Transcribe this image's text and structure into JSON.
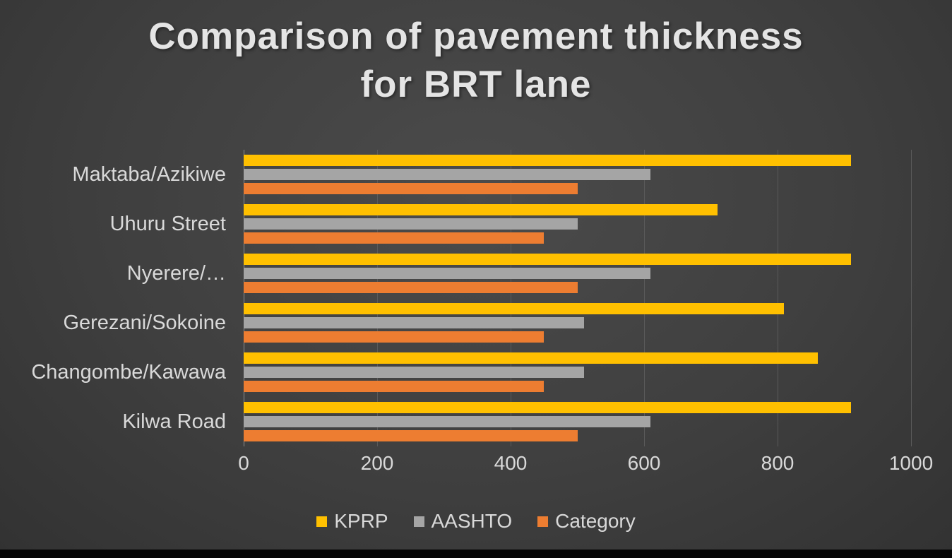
{
  "title_lines": [
    "Comparison of pavement thickness",
    "for BRT lane"
  ],
  "chart_data": {
    "type": "bar",
    "orientation": "horizontal",
    "title": "Comparison of pavement thickness for BRT lane",
    "xlabel": "",
    "ylabel": "",
    "categories": [
      "Maktaba/Azikiwe",
      "Uhuru Street",
      "Nyerere/…",
      "Gerezani/Sokoine",
      "Changombe/Kawawa",
      "Kilwa Road"
    ],
    "series": [
      {
        "name": "KPRP",
        "color": "#FFC000",
        "values": [
          910,
          710,
          910,
          810,
          860,
          910
        ]
      },
      {
        "name": "AASHTO",
        "color": "#A5A5A5",
        "values": [
          610,
          500,
          610,
          510,
          510,
          610
        ]
      },
      {
        "name": "Category",
        "color": "#ED7D31",
        "values": [
          500,
          450,
          500,
          450,
          450,
          500
        ]
      }
    ],
    "xlim": [
      0,
      1000
    ],
    "x_ticks": [
      0,
      200,
      400,
      600,
      800,
      1000
    ],
    "grid": true,
    "legend_position": "bottom"
  },
  "colors": {
    "background": "#3f3f3f",
    "text": "#d9d9d9",
    "title_text": "#e4e4e4",
    "gridline": "#5a5a5a",
    "axis_line": "#8f8f8f"
  }
}
